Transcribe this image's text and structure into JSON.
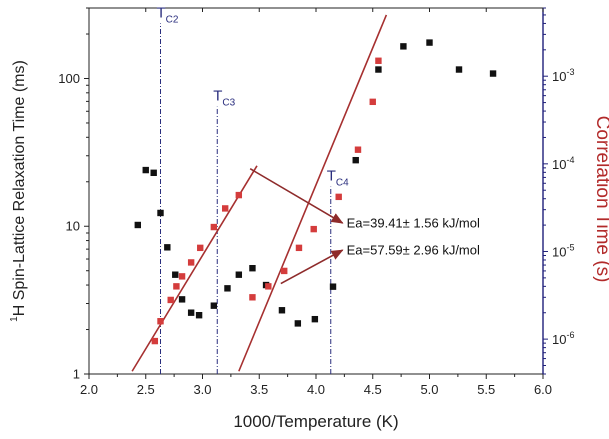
{
  "chart_data": {
    "type": "scatter",
    "x_axis": {
      "label": "1000/Temperature (K)",
      "lim": [
        2.0,
        6.0
      ],
      "ticks": [
        2.0,
        2.5,
        3.0,
        3.5,
        4.0,
        4.5,
        5.0,
        5.5,
        6.0
      ],
      "tick_labels": [
        "2.0",
        "2.5",
        "3.0",
        "3.5",
        "4.0",
        "4.5",
        "5.0",
        "5.5",
        "6.0"
      ]
    },
    "y_left": {
      "label_super": "1",
      "label_main": "H Spin-Lattice Relaxation Time (ms)",
      "scale": "log",
      "lim": [
        1,
        300
      ],
      "ticks": [
        1,
        10,
        100
      ],
      "tick_labels": [
        "1",
        "10",
        "100"
      ]
    },
    "y_right": {
      "label": "Correlation Time (s)",
      "scale": "log",
      "lim": [
        4e-07,
        0.006
      ],
      "ticks": [
        1e-06,
        1e-05,
        0.0001,
        0.001
      ],
      "tick_labels": [
        {
          "base": "10",
          "exp": "-6"
        },
        {
          "base": "10",
          "exp": "-5"
        },
        {
          "base": "10",
          "exp": "-4"
        },
        {
          "base": "10",
          "exp": "-3"
        }
      ],
      "color": "#1f1f7a"
    },
    "series": [
      {
        "axis": "left",
        "marker": "square",
        "color": "#111111",
        "points": [
          [
            2.43,
            10.2
          ],
          [
            2.5,
            24
          ],
          [
            2.57,
            23
          ],
          [
            2.63,
            12.3
          ],
          [
            2.69,
            7.2
          ],
          [
            2.76,
            4.7
          ],
          [
            2.82,
            3.2
          ],
          [
            2.9,
            2.6
          ],
          [
            2.97,
            2.5
          ],
          [
            3.1,
            2.9
          ],
          [
            3.22,
            3.8
          ],
          [
            3.32,
            4.7
          ],
          [
            3.44,
            5.2
          ],
          [
            3.56,
            4.0
          ],
          [
            3.7,
            2.7
          ],
          [
            3.84,
            2.2
          ],
          [
            3.99,
            2.35
          ],
          [
            4.15,
            3.9
          ],
          [
            4.35,
            28
          ],
          [
            4.55,
            115
          ],
          [
            4.77,
            165
          ],
          [
            5.0,
            175
          ],
          [
            5.26,
            115
          ],
          [
            5.56,
            108
          ]
        ]
      },
      {
        "axis": "right",
        "marker": "square",
        "color": "#d43c3c",
        "points": [
          [
            2.58,
            9.5e-07
          ],
          [
            2.63,
            1.6e-06
          ],
          [
            2.72,
            2.8e-06
          ],
          [
            2.77,
            4e-06
          ],
          [
            2.82,
            5.2e-06
          ],
          [
            2.9,
            7.5e-06
          ],
          [
            2.98,
            1.1e-05
          ],
          [
            3.1,
            1.9e-05
          ],
          [
            3.2,
            3.1e-05
          ],
          [
            3.32,
            4.4e-05
          ],
          [
            3.44,
            3e-06
          ],
          [
            3.58,
            4e-06
          ],
          [
            3.72,
            6e-06
          ],
          [
            3.85,
            1.1e-05
          ],
          [
            3.98,
            1.8e-05
          ],
          [
            4.2,
            4.2e-05
          ],
          [
            4.37,
            0.000145
          ],
          [
            4.5,
            0.00051
          ],
          [
            4.55,
            0.0015
          ]
        ]
      }
    ],
    "fit_lines": [
      {
        "axis": "right",
        "color": "#a63030",
        "from": [
          2.38,
          4.3e-07
        ],
        "to": [
          3.48,
          9.5e-05
        ]
      },
      {
        "axis": "right",
        "color": "#a63030",
        "from": [
          3.32,
          4.3e-07
        ],
        "to": [
          4.62,
          0.005
        ]
      }
    ],
    "transitions": [
      {
        "x": 2.63,
        "base": "T",
        "sub": "C2",
        "top_right": 0.004
      },
      {
        "x": 3.13,
        "base": "T",
        "sub": "C3",
        "top_right": 0.00045
      },
      {
        "x": 4.13,
        "base": "T",
        "sub": "C4",
        "top_right": 5.5e-05
      }
    ],
    "annotations": [
      {
        "text": "Ea=39.41± 1.56 kJ/mol",
        "anchor_x": 4.27,
        "anchor_y": 10.5,
        "arrow_from": [
          3.42,
          24.5
        ]
      },
      {
        "text": "Ea=57.59± 2.96 kJ/mol",
        "anchor_x": 4.27,
        "anchor_y": 6.9,
        "arrow_from": [
          3.69,
          4.3e-06
        ],
        "arrow_from_axis": "right"
      }
    ]
  }
}
